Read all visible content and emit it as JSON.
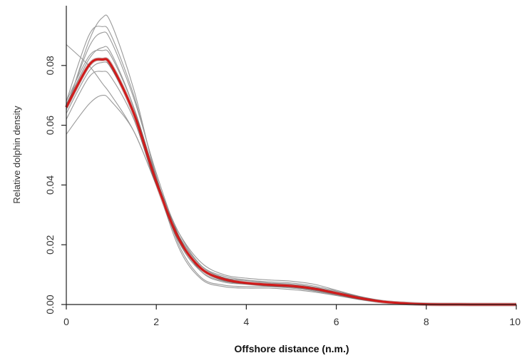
{
  "chart_data": {
    "type": "line",
    "title": "",
    "xlabel": "Offshore distance (n.m.)",
    "ylabel": "Relative dolphin density",
    "xlim": [
      0,
      10
    ],
    "ylim": [
      0,
      0.1
    ],
    "x_ticks": [
      "0",
      "2",
      "4",
      "6",
      "8",
      "10"
    ],
    "y_ticks": [
      "0.00",
      "0.02",
      "0.04",
      "0.06",
      "0.08"
    ],
    "grid": false,
    "legend": "none",
    "colors": {
      "mean": "#d11a1a",
      "sample": "#9a9a9a"
    },
    "x": [
      0,
      0.5,
      0.8,
      1.0,
      1.5,
      2.0,
      2.5,
      3.0,
      3.5,
      4.0,
      4.5,
      5.0,
      5.5,
      6.0,
      6.5,
      7.0,
      7.5,
      8.0,
      9.0,
      10.0
    ],
    "series": [
      {
        "role": "mean",
        "values": [
          0.066,
          0.08,
          0.082,
          0.08,
          0.064,
          0.041,
          0.022,
          0.012,
          0.0085,
          0.0072,
          0.0066,
          0.0062,
          0.0053,
          0.0038,
          0.0022,
          0.001,
          0.0004,
          0.0001,
          0.0,
          0.0
        ]
      },
      {
        "role": "sample",
        "values": [
          0.068,
          0.09,
          0.093,
          0.09,
          0.07,
          0.043,
          0.02,
          0.009,
          0.0065,
          0.006,
          0.006,
          0.0055,
          0.0045,
          0.0032,
          0.0018,
          0.0008,
          0.0003,
          0.0,
          0.0,
          0.0
        ]
      },
      {
        "role": "sample",
        "values": [
          0.065,
          0.088,
          0.096,
          0.094,
          0.072,
          0.042,
          0.019,
          0.0085,
          0.006,
          0.0055,
          0.0055,
          0.005,
          0.0042,
          0.003,
          0.0017,
          0.0008,
          0.0003,
          0.0,
          0.0,
          0.0
        ]
      },
      {
        "role": "sample",
        "values": [
          0.066,
          0.086,
          0.091,
          0.088,
          0.069,
          0.044,
          0.023,
          0.011,
          0.0075,
          0.0068,
          0.0062,
          0.0058,
          0.0048,
          0.0034,
          0.0019,
          0.0009,
          0.0003,
          0.0,
          0.0,
          0.0
        ]
      },
      {
        "role": "sample",
        "values": [
          0.068,
          0.083,
          0.085,
          0.083,
          0.066,
          0.042,
          0.022,
          0.012,
          0.008,
          0.007,
          0.0065,
          0.006,
          0.005,
          0.0036,
          0.002,
          0.0009,
          0.0003,
          0.0,
          0.0,
          0.0
        ]
      },
      {
        "role": "sample",
        "values": [
          0.067,
          0.082,
          0.086,
          0.084,
          0.066,
          0.041,
          0.021,
          0.011,
          0.0078,
          0.007,
          0.0064,
          0.006,
          0.005,
          0.0035,
          0.002,
          0.0009,
          0.0003,
          0.0,
          0.0,
          0.0
        ]
      },
      {
        "role": "sample",
        "values": [
          0.062,
          0.076,
          0.078,
          0.076,
          0.062,
          0.04,
          0.023,
          0.013,
          0.0095,
          0.0082,
          0.0076,
          0.0072,
          0.0062,
          0.0045,
          0.0026,
          0.0012,
          0.0005,
          0.0001,
          0.0,
          0.0
        ]
      },
      {
        "role": "sample",
        "values": [
          0.057,
          0.067,
          0.07,
          0.068,
          0.058,
          0.04,
          0.024,
          0.014,
          0.01,
          0.0088,
          0.0082,
          0.0078,
          0.0068,
          0.0048,
          0.0028,
          0.0013,
          0.0005,
          0.0001,
          0.0,
          0.0
        ]
      },
      {
        "role": "sample",
        "values": [
          0.087,
          0.08,
          0.074,
          0.07,
          0.058,
          0.04,
          0.022,
          0.012,
          0.008,
          0.007,
          0.0066,
          0.0062,
          0.0052,
          0.0036,
          0.002,
          0.0009,
          0.0003,
          0.0,
          0.0,
          0.0
        ]
      },
      {
        "role": "sample",
        "values": [
          0.064,
          0.078,
          0.081,
          0.079,
          0.064,
          0.042,
          0.024,
          0.013,
          0.009,
          0.008,
          0.0072,
          0.0068,
          0.0058,
          0.0041,
          0.0024,
          0.0011,
          0.0004,
          0.0001,
          0.0,
          0.0
        ]
      }
    ]
  }
}
